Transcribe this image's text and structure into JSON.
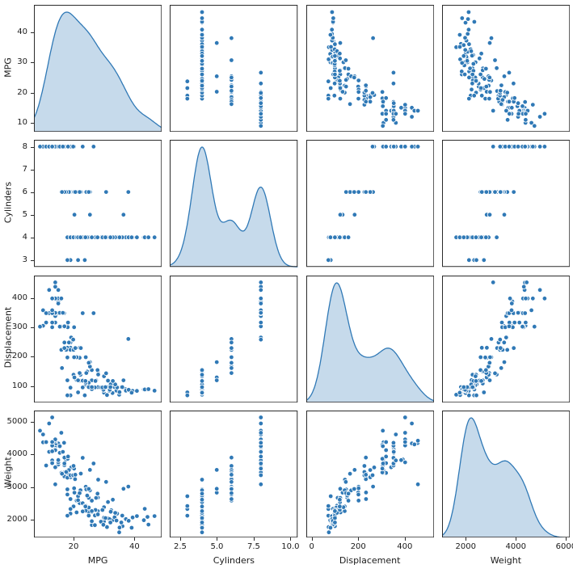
{
  "figure": {
    "kind": "seaborn-pairplot",
    "background": "#ffffff"
  },
  "chart_data": {
    "type": "scatter",
    "subtype": "pairplot-4x4",
    "diagonal": "kde",
    "grid": false,
    "legend": "none",
    "variables": [
      "MPG",
      "Cylinders",
      "Displacement",
      "Weight"
    ],
    "colors": {
      "point": "#3079b6",
      "point_edge": "#ffffff",
      "kde_line": "#3079b6",
      "kde_fill": "rgba(49,121,182,0.28)",
      "spine": "#2b2b2b",
      "text": "#1a1a1a"
    },
    "axes": {
      "MPG": {
        "y_range": [
          7,
          49
        ],
        "y_ticks": [
          10,
          20,
          30,
          40
        ],
        "y_tick_labels": [
          "10",
          "20",
          "30",
          "40"
        ],
        "x_range": [
          7,
          49
        ],
        "x_ticks": [
          20,
          40
        ],
        "x_tick_labels": [
          "20",
          "40"
        ]
      },
      "Cylinders": {
        "y_range": [
          2.7,
          8.3
        ],
        "y_ticks": [
          3,
          4,
          5,
          6,
          7,
          8
        ],
        "y_tick_labels": [
          "3",
          "4",
          "5",
          "6",
          "7",
          "8"
        ],
        "x_range": [
          1.8,
          10.5
        ],
        "x_ticks": [
          2.5,
          5,
          7.5,
          10
        ],
        "x_tick_labels": [
          "2.5",
          "5.0",
          "7.5",
          "10.0"
        ]
      },
      "Displacement": {
        "y_range": [
          45,
          478
        ],
        "y_ticks": [
          100,
          200,
          300,
          400
        ],
        "y_tick_labels": [
          "100",
          "200",
          "300",
          "400"
        ],
        "x_range": [
          -25,
          525
        ],
        "x_ticks": [
          0,
          200,
          400
        ],
        "x_tick_labels": [
          "0",
          "200",
          "400"
        ]
      },
      "Weight": {
        "y_range": [
          1450,
          5350
        ],
        "y_ticks": [
          2000,
          3000,
          4000,
          5000
        ],
        "y_tick_labels": [
          "2000",
          "3000",
          "4000",
          "5000"
        ],
        "x_range": [
          1050,
          6150
        ],
        "x_ticks": [
          2000,
          4000,
          6000
        ],
        "x_tick_labels": [
          "2000",
          "4000",
          "6000"
        ]
      }
    },
    "record_fields": [
      "MPG",
      "Cylinders",
      "Displacement",
      "Weight"
    ],
    "records": [
      [
        18,
        8,
        307,
        3504
      ],
      [
        15,
        8,
        350,
        3693
      ],
      [
        18,
        8,
        318,
        3436
      ],
      [
        16,
        8,
        304,
        3433
      ],
      [
        17,
        8,
        302,
        3449
      ],
      [
        15,
        8,
        429,
        4341
      ],
      [
        14,
        8,
        454,
        4354
      ],
      [
        14,
        8,
        440,
        4312
      ],
      [
        14,
        8,
        455,
        4425
      ],
      [
        15,
        8,
        390,
        3850
      ],
      [
        14,
        8,
        340,
        3609
      ],
      [
        15,
        8,
        400,
        3761
      ],
      [
        14,
        8,
        455,
        3086
      ],
      [
        24,
        4,
        113,
        2372
      ],
      [
        22,
        6,
        198,
        2833
      ],
      [
        18,
        6,
        199,
        2774
      ],
      [
        21,
        6,
        200,
        2587
      ],
      [
        27,
        4,
        97,
        2130
      ],
      [
        26,
        4,
        97,
        1835
      ],
      [
        25,
        4,
        110,
        2672
      ],
      [
        24,
        4,
        107,
        2430
      ],
      [
        25,
        4,
        104,
        2375
      ],
      [
        26,
        4,
        121,
        2234
      ],
      [
        10,
        8,
        360,
        4615
      ],
      [
        10,
        8,
        307,
        4376
      ],
      [
        11,
        8,
        318,
        4382
      ],
      [
        9,
        8,
        304,
        4732
      ],
      [
        28,
        4,
        140,
        2264
      ],
      [
        25,
        4,
        113,
        2228
      ],
      [
        19,
        6,
        232,
        2634
      ],
      [
        16,
        6,
        225,
        3439
      ],
      [
        17,
        6,
        250,
        3329
      ],
      [
        19,
        6,
        250,
        3302
      ],
      [
        18,
        6,
        232,
        3288
      ],
      [
        14,
        8,
        350,
        4209
      ],
      [
        14,
        8,
        400,
        4464
      ],
      [
        14,
        8,
        351,
        4154
      ],
      [
        12,
        8,
        350,
        4082
      ],
      [
        13,
        8,
        400,
        4278
      ],
      [
        13,
        8,
        302,
        4294
      ],
      [
        18,
        4,
        121,
        2933
      ],
      [
        22,
        4,
        120,
        2511
      ],
      [
        19,
        4,
        96,
        2189
      ],
      [
        23,
        4,
        120,
        2506
      ],
      [
        28,
        4,
        98,
        2164
      ],
      [
        30,
        4,
        79,
        1950
      ],
      [
        30,
        4,
        88,
        2065
      ],
      [
        31,
        4,
        71,
        1773
      ],
      [
        35,
        4,
        72,
        1613
      ],
      [
        27,
        4,
        97,
        1834
      ],
      [
        26,
        4,
        91,
        1955
      ],
      [
        24,
        4,
        113,
        2278
      ],
      [
        25,
        4,
        98,
        2126
      ],
      [
        23,
        4,
        97,
        2254
      ],
      [
        20,
        4,
        140,
        2408
      ],
      [
        21,
        4,
        122,
        2226
      ],
      [
        13,
        8,
        350,
        4274
      ],
      [
        14,
        8,
        318,
        4135
      ],
      [
        15,
        8,
        383,
        3830
      ],
      [
        17,
        8,
        304,
        3672
      ],
      [
        11,
        8,
        350,
        3664
      ],
      [
        13,
        8,
        400,
        4385
      ],
      [
        12,
        8,
        429,
        4952
      ],
      [
        13,
        8,
        350,
        4100
      ],
      [
        19,
        3,
        70,
        2330
      ],
      [
        18,
        3,
        70,
        2124
      ],
      [
        21.5,
        3,
        80,
        2720
      ],
      [
        23.7,
        3,
        70,
        2420
      ],
      [
        20.3,
        5,
        131,
        2830
      ],
      [
        25.4,
        5,
        183,
        3530
      ],
      [
        36.4,
        5,
        121,
        2950
      ],
      [
        43.1,
        4,
        90,
        1985
      ],
      [
        36.1,
        4,
        98,
        1800
      ],
      [
        32.8,
        4,
        78,
        1985
      ],
      [
        39.4,
        4,
        85,
        2070
      ],
      [
        44.3,
        4,
        90,
        2085
      ],
      [
        43.4,
        4,
        90,
        2335
      ],
      [
        46.6,
        4,
        86,
        2110
      ],
      [
        40.8,
        4,
        85,
        2110
      ],
      [
        44.6,
        4,
        91,
        1850
      ],
      [
        33.8,
        4,
        97,
        2145
      ],
      [
        32.4,
        4,
        107,
        2290
      ],
      [
        31.5,
        4,
        98,
        2045
      ],
      [
        38,
        6,
        262,
        3015
      ],
      [
        26.6,
        8,
        350,
        3725
      ],
      [
        23,
        8,
        350,
        3900
      ],
      [
        17.5,
        8,
        305,
        3840
      ],
      [
        18.1,
        8,
        302,
        3870
      ],
      [
        19.2,
        8,
        267,
        3605
      ],
      [
        20.2,
        8,
        302,
        3570
      ],
      [
        21.5,
        4,
        121,
        2600
      ],
      [
        28,
        4,
        151,
        2678
      ],
      [
        26,
        4,
        156,
        2585
      ],
      [
        24,
        6,
        200,
        3012
      ],
      [
        22,
        6,
        232,
        2835
      ],
      [
        20.5,
        6,
        231,
        3245
      ],
      [
        19,
        6,
        225,
        3360
      ],
      [
        20,
        6,
        225,
        3651
      ],
      [
        18.5,
        6,
        250,
        3525
      ],
      [
        33.5,
        4,
        98,
        2075
      ],
      [
        34.1,
        4,
        86,
        1975
      ],
      [
        35.7,
        4,
        98,
        1915
      ],
      [
        27.4,
        4,
        121,
        2670
      ],
      [
        30,
        4,
        135,
        2385
      ],
      [
        31.8,
        4,
        85,
        2020
      ],
      [
        37,
        4,
        91,
        2025
      ],
      [
        32.2,
        4,
        108,
        2245
      ],
      [
        29,
        4,
        97,
        1940
      ],
      [
        24.5,
        4,
        151,
        2740
      ],
      [
        29.8,
        4,
        89,
        1845
      ],
      [
        31.3,
        4,
        120,
        2542
      ],
      [
        37.2,
        4,
        86,
        2019
      ],
      [
        28.1,
        4,
        141,
        3230
      ],
      [
        30.7,
        6,
        145,
        3160
      ],
      [
        25.4,
        6,
        168,
        2900
      ],
      [
        24.2,
        6,
        146,
        2930
      ],
      [
        22.4,
        6,
        231,
        3415
      ],
      [
        20.2,
        6,
        200,
        2965
      ],
      [
        17.6,
        6,
        225,
        3465
      ],
      [
        16,
        8,
        400,
        4668
      ],
      [
        15.5,
        8,
        304,
        4257
      ],
      [
        13,
        8,
        360,
        3821
      ],
      [
        13,
        8,
        318,
        3735
      ],
      [
        16.9,
        8,
        350,
        4360
      ],
      [
        15.5,
        8,
        351,
        4054
      ],
      [
        19.9,
        8,
        260,
        3365
      ],
      [
        22.3,
        4,
        140,
        2905
      ],
      [
        17,
        6,
        231,
        3907
      ],
      [
        16.2,
        6,
        163,
        3410
      ],
      [
        31.9,
        4,
        89,
        1925
      ],
      [
        34.3,
        4,
        97,
        2188
      ],
      [
        27.2,
        4,
        119,
        2300
      ],
      [
        29.5,
        4,
        97,
        2300
      ],
      [
        38.1,
        4,
        89,
        1968
      ],
      [
        36,
        4,
        98,
        2125
      ],
      [
        33.7,
        4,
        107,
        2210
      ],
      [
        32.9,
        4,
        119,
        2615
      ],
      [
        25,
        6,
        181,
        2945
      ],
      [
        22,
        6,
        146,
        2815
      ],
      [
        20.6,
        6,
        231,
        3380
      ],
      [
        17,
        8,
        305,
        3725
      ],
      [
        18.2,
        8,
        318,
        3940
      ],
      [
        16.5,
        8,
        351,
        4082
      ],
      [
        26,
        4,
        98,
        2265
      ],
      [
        27.9,
        4,
        156,
        2800
      ],
      [
        23.9,
        4,
        119,
        2405
      ],
      [
        30.5,
        4,
        98,
        2051
      ],
      [
        35.1,
        4,
        81,
        1760
      ],
      [
        39.1,
        4,
        79,
        1755
      ],
      [
        32.1,
        4,
        98,
        1915
      ],
      [
        13,
        8,
        400,
        5140
      ]
    ]
  }
}
